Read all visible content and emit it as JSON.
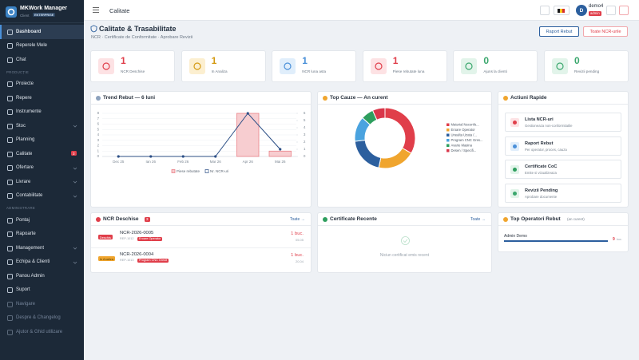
{
  "app": {
    "name": "MKWork Manager",
    "plan_label": "Client",
    "plan": "ENTERPRISE"
  },
  "sidebar": [
    {
      "label": "Dashboard",
      "active": true
    },
    {
      "label": "Reperele Mele"
    },
    {
      "label": "Chat"
    },
    {
      "section": "PRODUCȚIE"
    },
    {
      "label": "Proiecte"
    },
    {
      "label": "Repere"
    },
    {
      "label": "Instrumente"
    },
    {
      "label": "Stoc",
      "submenu": true
    },
    {
      "label": "Planning"
    },
    {
      "label": "Calitate",
      "badge": 3
    },
    {
      "label": "Ofertare",
      "submenu": true
    },
    {
      "label": "Livrare",
      "submenu": true
    },
    {
      "label": "Contabilitate",
      "submenu": true
    },
    {
      "section": "ADMINISTRARE"
    },
    {
      "label": "Pontaj"
    },
    {
      "label": "Rapoarte"
    },
    {
      "label": "Management",
      "submenu": true
    },
    {
      "label": "Echipa & Clienti",
      "submenu": true
    },
    {
      "label": "Panou Admin"
    },
    {
      "label": "Suport"
    },
    {
      "label": "Navigare",
      "muted": true
    },
    {
      "label": "Despre & Changelog",
      "muted": true
    },
    {
      "label": "Ajutor & Ghid utilizare",
      "muted": true
    }
  ],
  "topbar": {
    "title": "Calitate",
    "user": "demo4",
    "role": "admin",
    "avatar": "D"
  },
  "header": {
    "title": "Calitate & Trasabilitate",
    "subtitle": "NCR · Certificate de Conformitate · Aprobare Revizii",
    "buttons": [
      "Raport Rebut",
      "Toate NCR-urile"
    ]
  },
  "stats": [
    {
      "value": 1,
      "label": "NCR Deschise",
      "color": "#e03e4a",
      "bg": "#fde2e4"
    },
    {
      "value": 1,
      "label": "In Analiza",
      "color": "#d49a12",
      "bg": "#fcefd0"
    },
    {
      "value": 1,
      "label": "NCR luna asta",
      "color": "#4a90d9",
      "bg": "#e0eefb"
    },
    {
      "value": 1,
      "label": "Piese rebutate luna",
      "color": "#e03e4a",
      "bg": "#fde2e4"
    },
    {
      "value": 0,
      "label": "Ajuns la clienti",
      "color": "#3aa76d",
      "bg": "#e2f4ea"
    },
    {
      "value": 0,
      "label": "Revizii pending",
      "color": "#3aa76d",
      "bg": "#e2f4ea"
    }
  ],
  "trend": {
    "type": "bar_line",
    "title": "Trend Rebut — 6 luni",
    "categories": [
      "Dec 25",
      "Ian 26",
      "Feb 26",
      "Mar 26",
      "Apr 26",
      "Mai 26"
    ],
    "series": [
      {
        "name": "Piese rebutate",
        "type": "bar",
        "color": "#e8767d",
        "fill": "#f7cdd0",
        "values": [
          0,
          0,
          0,
          0,
          8,
          1
        ]
      },
      {
        "name": "Nr. NCR-uri",
        "type": "line",
        "axis": "y2",
        "color": "#2c4f86",
        "values": [
          0,
          0,
          0,
          0,
          6,
          1
        ]
      }
    ],
    "ylim": [
      0,
      8
    ],
    "yticks": [
      0,
      1,
      2,
      3,
      4,
      5,
      6,
      7,
      8
    ],
    "y2lim": [
      0,
      6
    ],
    "y2ticks": [
      0,
      1,
      2,
      3,
      4,
      5,
      6
    ],
    "grid": true
  },
  "causes": {
    "type": "pie",
    "title": "Top Cauze — An curent",
    "categories": [
      "Material Neconfo...",
      "Eroare Operator",
      "Unealta Uzata /...",
      "Program CNC Gres...",
      "Avarie Masina",
      "Desen / Specifi..."
    ],
    "values": [
      5,
      3,
      3,
      2,
      1,
      1
    ],
    "colors": [
      "#e03e4a",
      "#f0a52e",
      "#2c5f9e",
      "#4aa3df",
      "#2e9e5e",
      "#d9364a"
    ]
  },
  "actions": {
    "title": "Actiuni Rapide",
    "items": [
      {
        "title": "Lista NCR-uri",
        "desc": "Gestioneaza non-conformitatile",
        "color": "#e03e4a",
        "bg": "#fde2e4"
      },
      {
        "title": "Raport Rebut",
        "desc": "Per operator, proces, cauza",
        "color": "#4a90d9",
        "bg": "#e0eefb"
      },
      {
        "title": "Certificate CoC",
        "desc": "Emite si vizualizeaza",
        "color": "#2e9e5e",
        "bg": "#e2f4ea"
      },
      {
        "title": "Revizii Pending",
        "desc": "Aprobare documente",
        "color": "#3aa76d",
        "bg": "#e2f4ea"
      }
    ]
  },
  "ncr": {
    "title": "NCR Deschise",
    "count": 3,
    "link": "Toate →",
    "rows": [
      {
        "status": "Deschis",
        "status_color": "#e03e4a",
        "number": "NCR-2026-0005",
        "ref": "REP-1012",
        "cause": "Eroare Operator",
        "quantity": 1,
        "unit": "buc.",
        "date": "05.05"
      },
      {
        "status": "In Analiza",
        "status_color": "#f0a52e",
        "number": "NCR-2026-0004",
        "ref": "REP-1013",
        "cause": "Program CNC Gresit",
        "quantity": 1,
        "unit": "buc.",
        "date": "20.04"
      }
    ]
  },
  "certificates": {
    "title": "Certificate Recente",
    "link": "Toate →",
    "empty": "Niciun certificat emis recent"
  },
  "operators": {
    "title": "Top Operatori Rebut",
    "note": "(an curent)",
    "rows": [
      {
        "name": "Admin Demo",
        "value": 9,
        "unit": "buc."
      }
    ]
  }
}
